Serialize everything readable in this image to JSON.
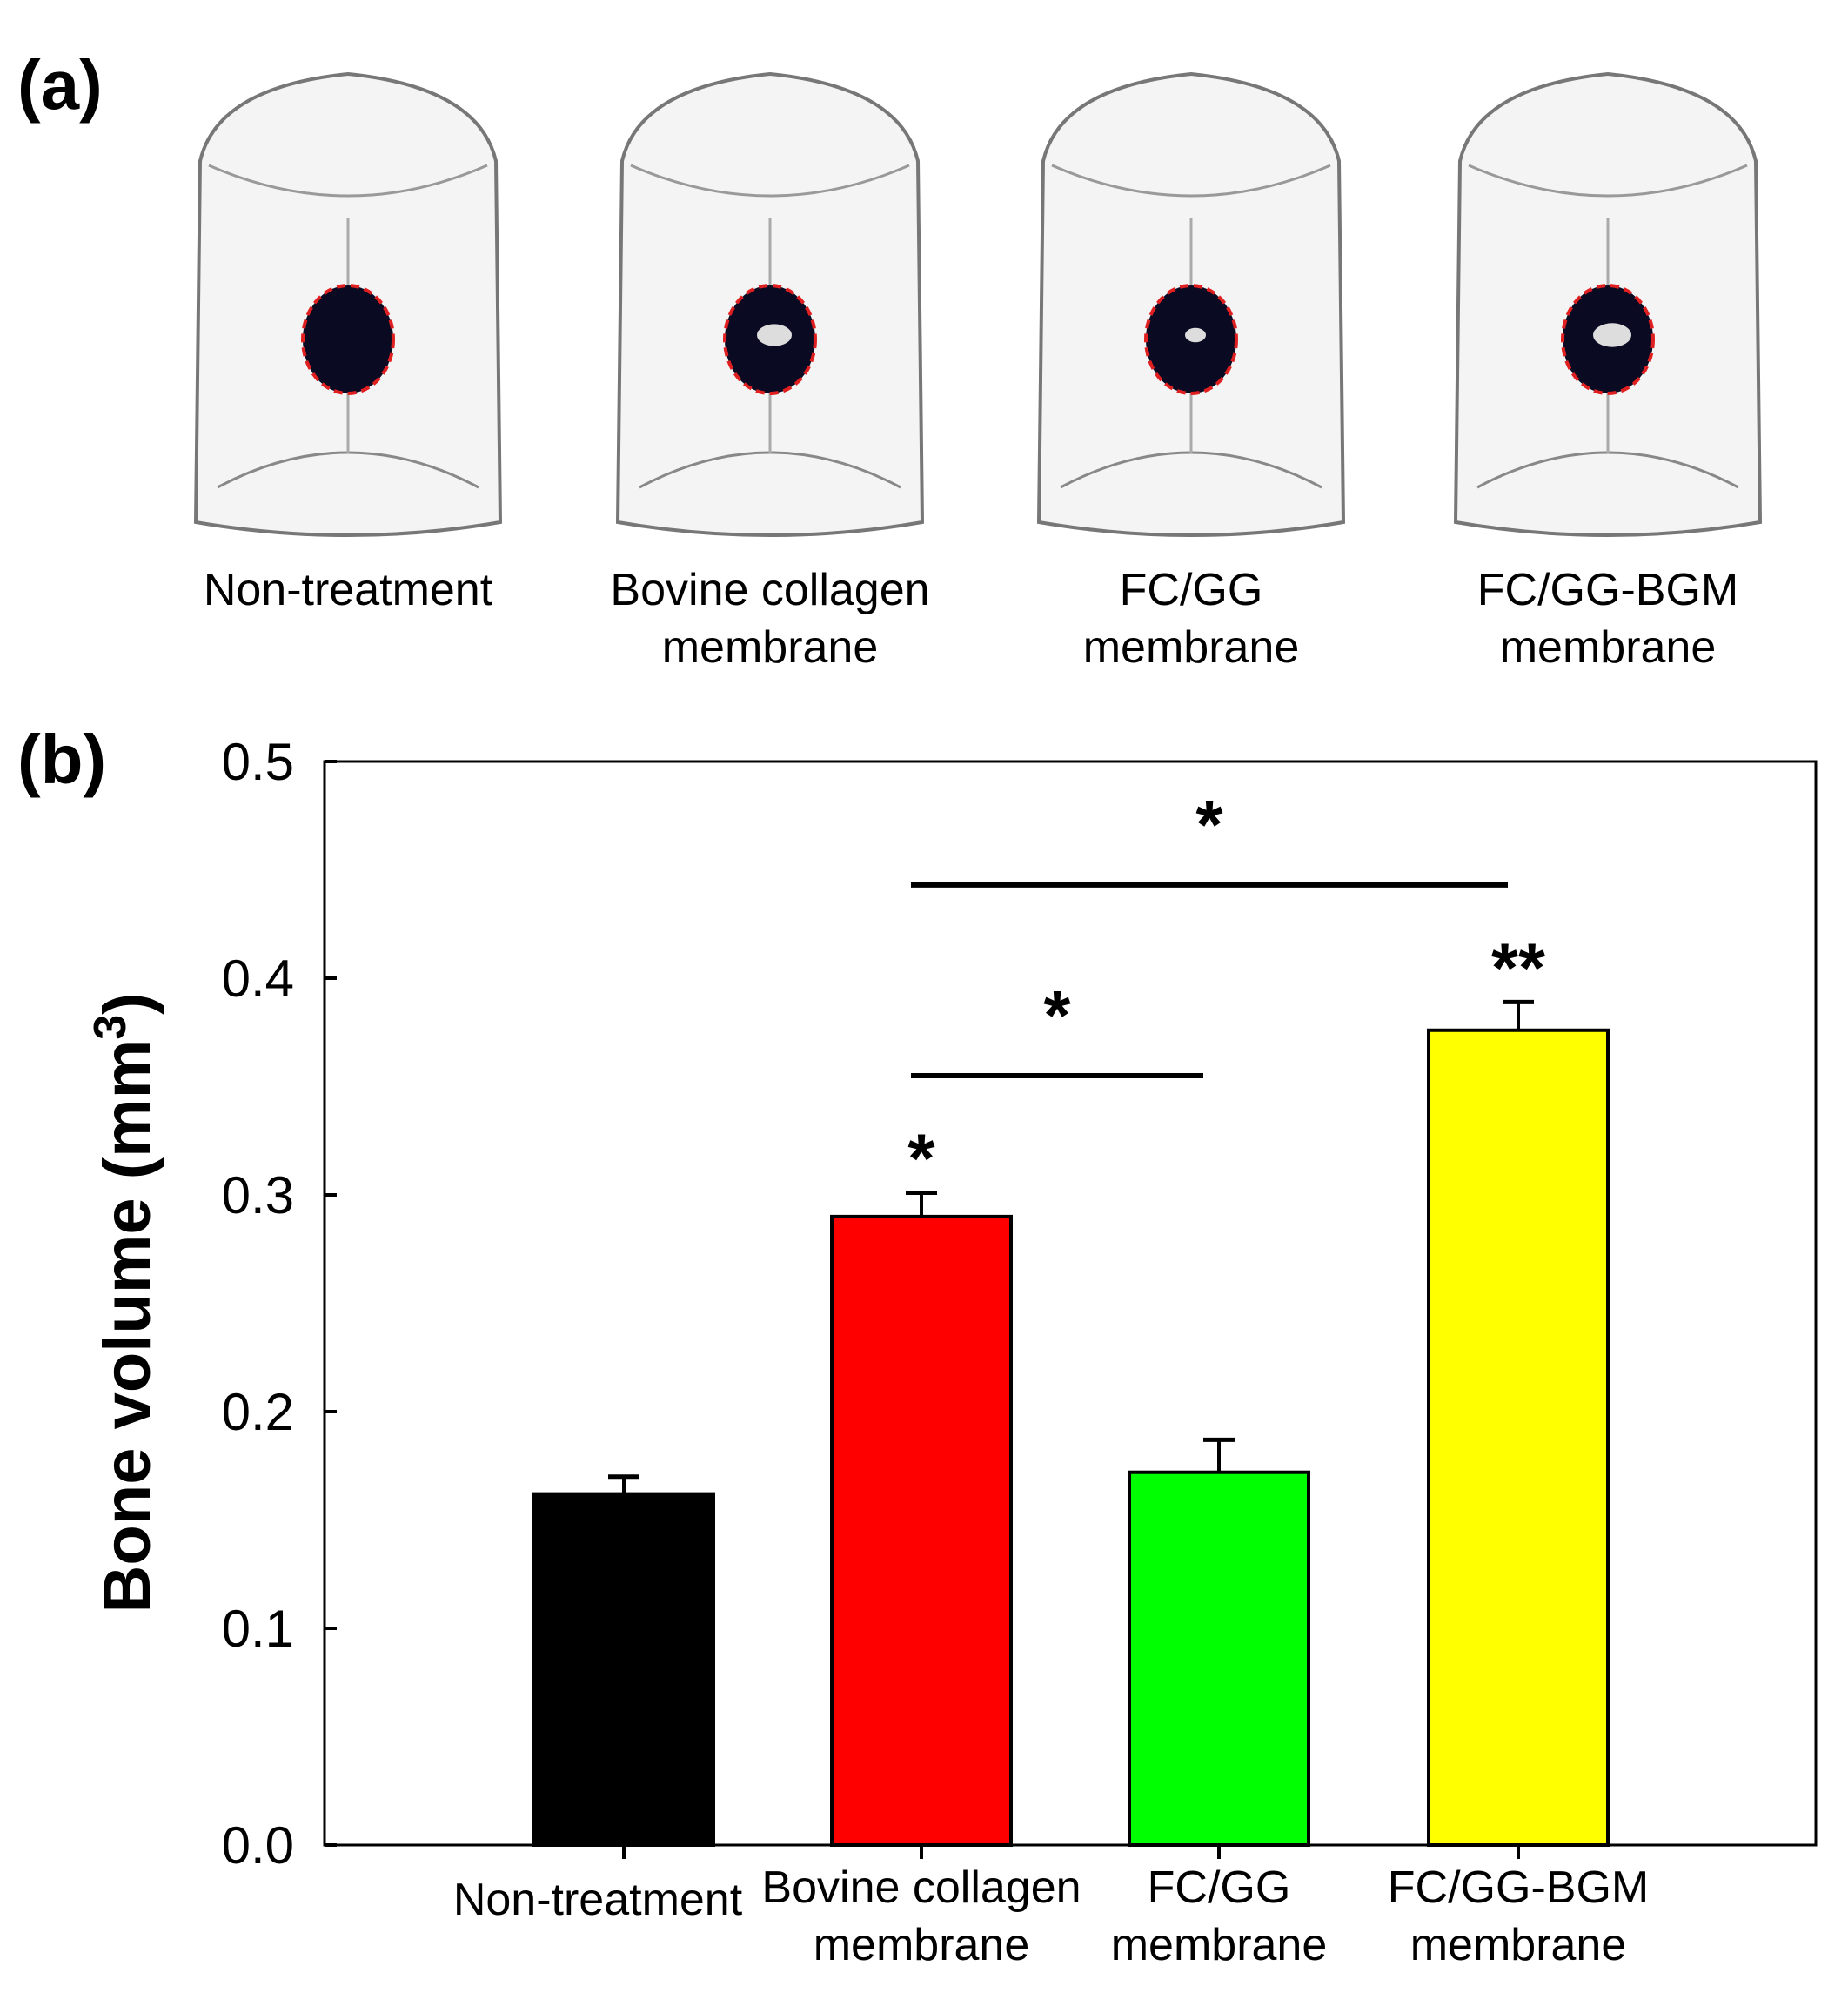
{
  "panel_a": {
    "label": "(a)",
    "images": [
      {
        "caption": [
          "Non-treatment"
        ]
      },
      {
        "caption": [
          "Bovine collagen",
          "membrane"
        ]
      },
      {
        "caption": [
          "FC/GG",
          "membrane"
        ]
      },
      {
        "caption": [
          "FC/GG-BGM",
          "membrane"
        ]
      }
    ]
  },
  "chart_data": {
    "type": "bar",
    "panel_label": "(b)",
    "categories": [
      [
        "Non-treatment"
      ],
      [
        "Bovine collagen",
        "membrane"
      ],
      [
        "FC/GG",
        "membrane"
      ],
      [
        "FC/GG-BGM",
        "membrane"
      ]
    ],
    "values": [
      0.162,
      0.29,
      0.172,
      0.376
    ],
    "errors": [
      0.008,
      0.011,
      0.015,
      0.013
    ],
    "colors": [
      "#000000",
      "#ff0000",
      "#00ff00",
      "#ffff00"
    ],
    "bar_annotations": [
      "",
      "*",
      "",
      "**"
    ],
    "ylabel": "Bone volume (mm",
    "ylabel_sup": "3",
    "ylabel_close": ")",
    "ylim": [
      0,
      0.5
    ],
    "yticks": [
      "0.0",
      "0.1",
      "0.2",
      "0.3",
      "0.4",
      "0.5"
    ],
    "grid": false,
    "significance": [
      {
        "from": 1,
        "to": 2,
        "label": "*",
        "level": 0.355
      },
      {
        "from": 1,
        "to": 3,
        "label": "*",
        "level": 0.443
      }
    ]
  }
}
